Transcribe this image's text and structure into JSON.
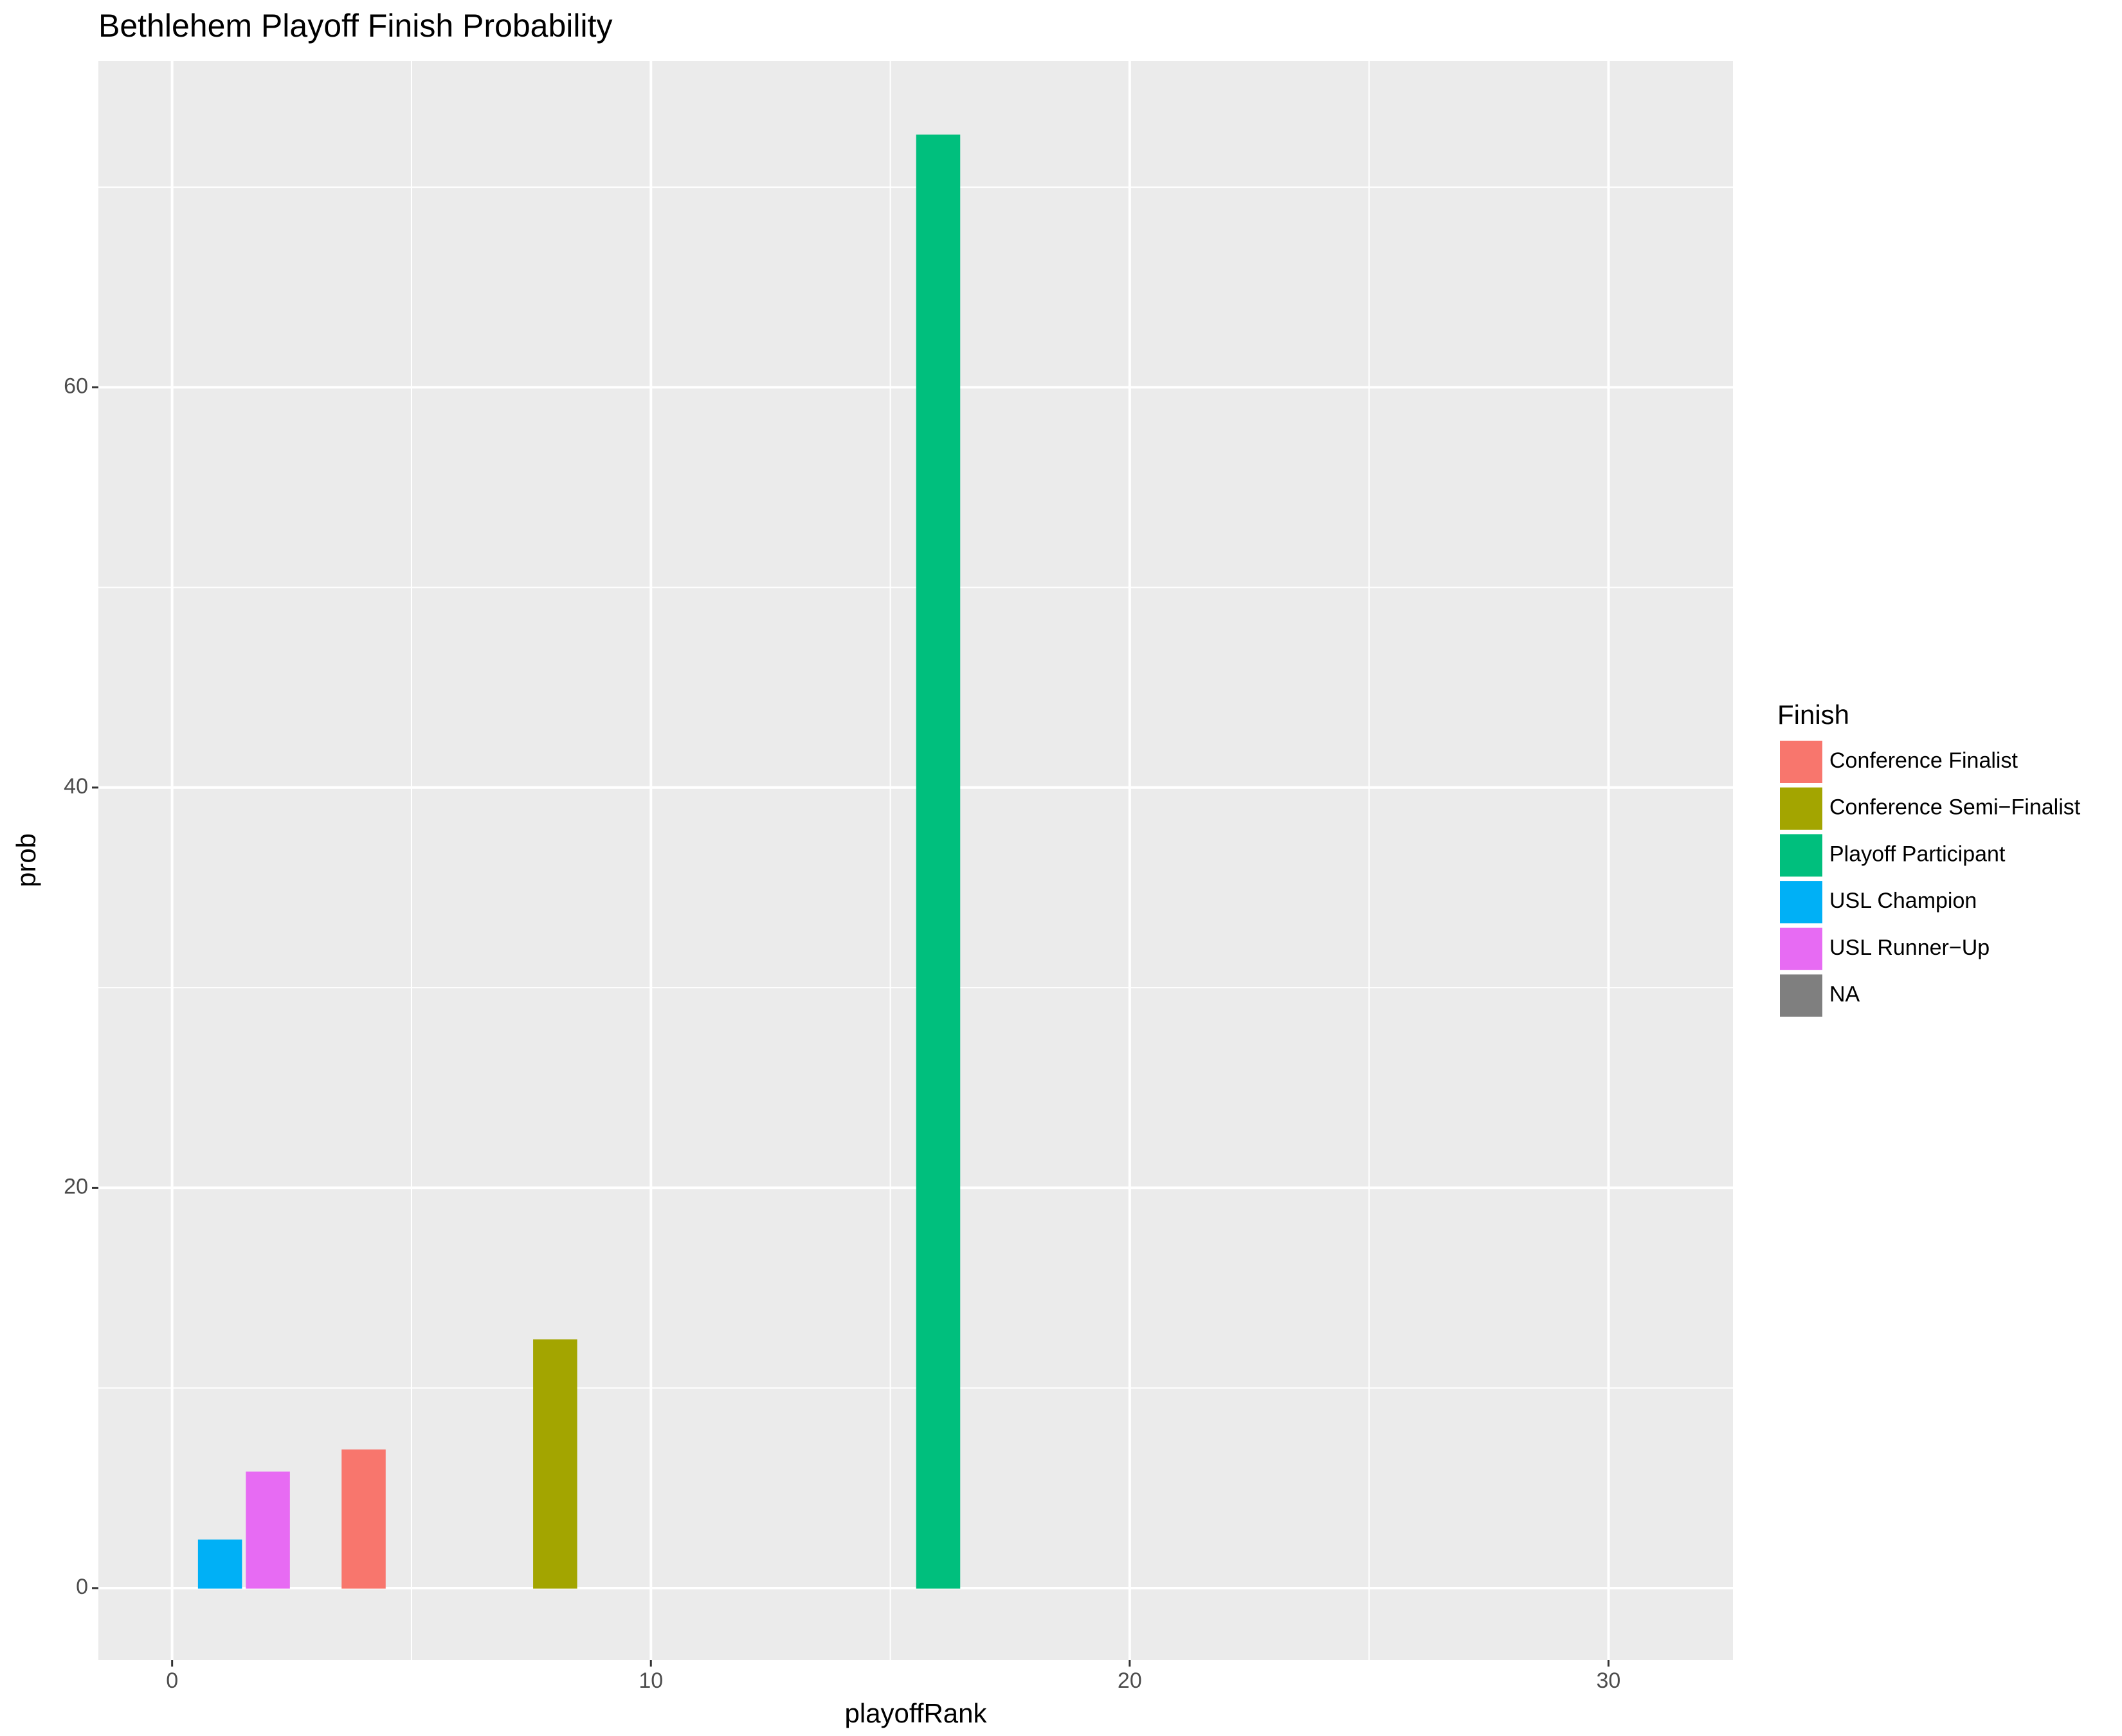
{
  "chart_data": {
    "type": "bar",
    "title": "Bethlehem Playoff Finish Probability",
    "x_label": "playoffRank",
    "y_label": "prob",
    "legend_title": "Finish",
    "xlim": [
      -1.54,
      32.6
    ],
    "ylim": [
      -3.6,
      76.3
    ],
    "xticks": [
      0,
      10,
      20,
      30
    ],
    "yticks": [
      0,
      20,
      40,
      60
    ],
    "grid": true,
    "legend_position": "right",
    "series": [
      {
        "name": "Conference Finalist",
        "color": "#f8766d",
        "x": [
          4
        ],
        "values": [
          6.9
        ]
      },
      {
        "name": "Conference Semi−Finalist",
        "color": "#a3a500",
        "x": [
          8
        ],
        "values": [
          12.4
        ]
      },
      {
        "name": "Playoff Participant",
        "color": "#00bf7d",
        "x": [
          16
        ],
        "values": [
          72.6
        ]
      },
      {
        "name": "USL Champion",
        "color": "#00b0f6",
        "x": [
          1
        ],
        "values": [
          2.4
        ]
      },
      {
        "name": "USL Runner−Up",
        "color": "#e76bf3",
        "x": [
          2
        ],
        "values": [
          5.8
        ]
      },
      {
        "name": "NA",
        "color": "#7f7f7f",
        "x": [
          3,
          5,
          6,
          7,
          9,
          10,
          11,
          12,
          13,
          14,
          15,
          17,
          18,
          19,
          20,
          21,
          22,
          23,
          24,
          25,
          26,
          27,
          28,
          29,
          30
        ],
        "values": [
          0,
          0,
          0,
          0,
          0,
          0,
          0,
          0,
          0,
          0,
          0,
          0,
          0,
          0,
          0,
          0,
          0,
          0,
          0,
          0,
          0,
          0,
          0,
          0,
          0
        ]
      }
    ]
  }
}
